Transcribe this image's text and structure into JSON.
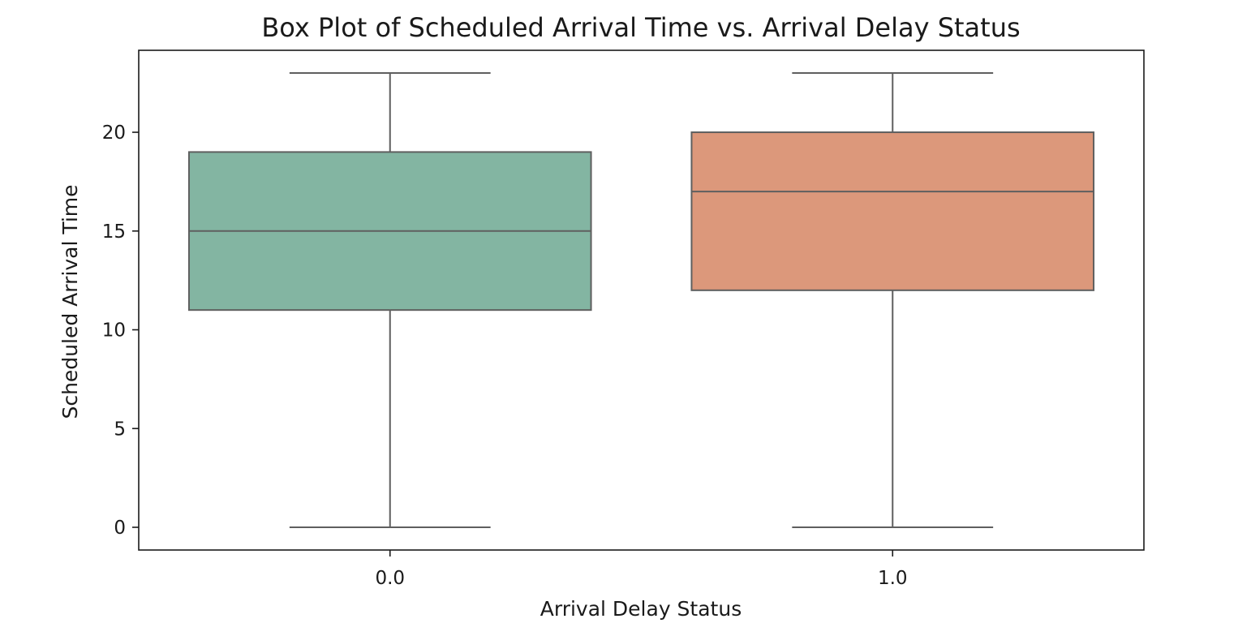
{
  "chart_data": {
    "type": "box",
    "title": "Box Plot of Scheduled Arrival Time vs. Arrival Delay Status",
    "xlabel": "Arrival Delay Status",
    "ylabel": "Scheduled Arrival Time",
    "categories": [
      "0.0",
      "1.0"
    ],
    "boxes": [
      {
        "category": "0.0",
        "min": 0,
        "q1": 11,
        "median": 15,
        "q3": 19,
        "max": 23,
        "color": "#83B5A2"
      },
      {
        "category": "1.0",
        "min": 0,
        "q1": 12,
        "median": 17,
        "q3": 20,
        "max": 23,
        "color": "#DC987B"
      }
    ],
    "yticks": [
      0,
      5,
      10,
      15,
      20
    ],
    "ylim": [
      -1.15,
      24.15
    ],
    "grid": false,
    "line_color": "#5f5f5f"
  }
}
